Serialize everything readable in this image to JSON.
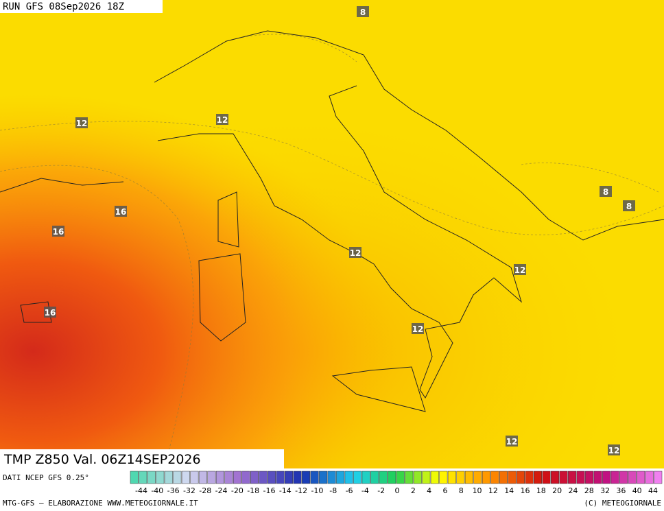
{
  "header": {
    "run": "RUN GFS 08Sep2026 18Z"
  },
  "map": {
    "contour_labels": [
      "8",
      "12",
      "12",
      "16",
      "16",
      "12",
      "12",
      "8",
      "8",
      "16",
      "12",
      "12",
      "12"
    ]
  },
  "footer": {
    "field": "TMP Z850 Val. 06Z14SEP2026",
    "source": "DATI NCEP GFS 0.25°",
    "credit_left": "MTG-GFS – ELABORAZIONE WWW.METEOGIORNALE.IT",
    "credit_right": "(C) METEOGIORNALE"
  },
  "legend": {
    "ticks": [
      "-44",
      "-40",
      "-36",
      "-32",
      "-28",
      "-24",
      "-20",
      "-18",
      "-16",
      "-14",
      "-12",
      "-10",
      "-8",
      "-6",
      "-4",
      "-2",
      "0",
      "2",
      "4",
      "6",
      "8",
      "10",
      "12",
      "14",
      "16",
      "18",
      "20",
      "24",
      "28",
      "32",
      "36",
      "40",
      "44"
    ]
  }
}
